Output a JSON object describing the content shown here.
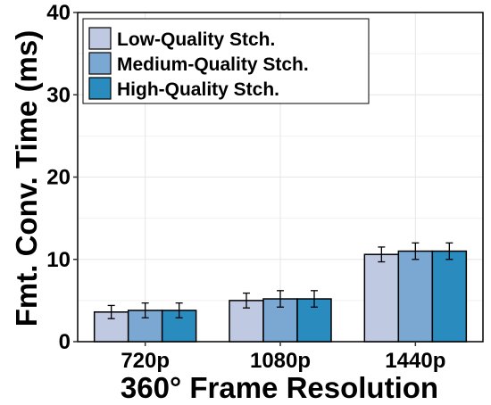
{
  "chart_data": {
    "type": "bar",
    "xlabel": "360° Frame Resolution",
    "ylabel": "Fmt. Conv. Time (ms)",
    "categories": [
      "720p",
      "1080p",
      "1440p"
    ],
    "ylim": [
      0,
      40
    ],
    "yticks": [
      0,
      10,
      20,
      30,
      40
    ],
    "grid": true,
    "legend_position": "top-left",
    "series": [
      {
        "name": "Low-Quality Stch.",
        "color": "#c0c9e2",
        "values": [
          3.6,
          5.0,
          10.6
        ],
        "errors": [
          0.8,
          0.9,
          0.9
        ]
      },
      {
        "name": "Medium-Quality Stch.",
        "color": "#7ba8d2",
        "values": [
          3.8,
          5.2,
          11.0
        ],
        "errors": [
          0.9,
          1.0,
          1.0
        ]
      },
      {
        "name": "High-Quality Stch.",
        "color": "#2a8bbf",
        "values": [
          3.8,
          5.2,
          11.0
        ],
        "errors": [
          0.9,
          1.0,
          1.0
        ]
      }
    ]
  }
}
